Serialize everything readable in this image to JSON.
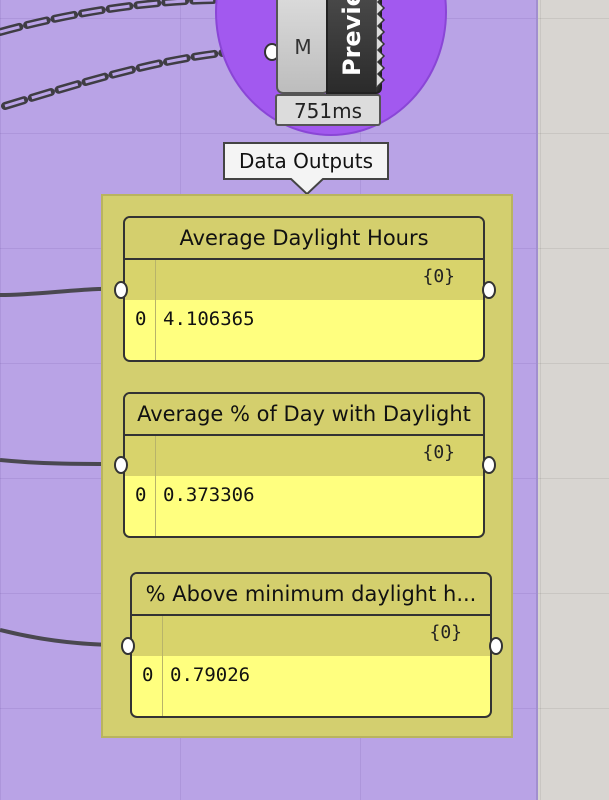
{
  "preview_component": {
    "input_label": "M",
    "name_label": "Preview",
    "timing": "751ms"
  },
  "group": {
    "tooltip": "Data Outputs"
  },
  "panels": [
    {
      "title": "Average Daylight Hours",
      "path": "{0}",
      "index": "0",
      "value": "4.106365"
    },
    {
      "title": "Average % of Day with Daylight",
      "path": "{0}",
      "index": "0",
      "value": "0.373306"
    },
    {
      "title": "% Above minimum daylight h...",
      "path": "{0}",
      "index": "0",
      "value": "0.79026"
    }
  ],
  "colors": {
    "group_bg": "#b9a3e6",
    "preview_circle": "#a259ef",
    "yellow_group": "#d3cf6f",
    "panel_bg": "#ffff7f",
    "panel_header": "#d4cf6d",
    "wire": "#4a4850"
  }
}
